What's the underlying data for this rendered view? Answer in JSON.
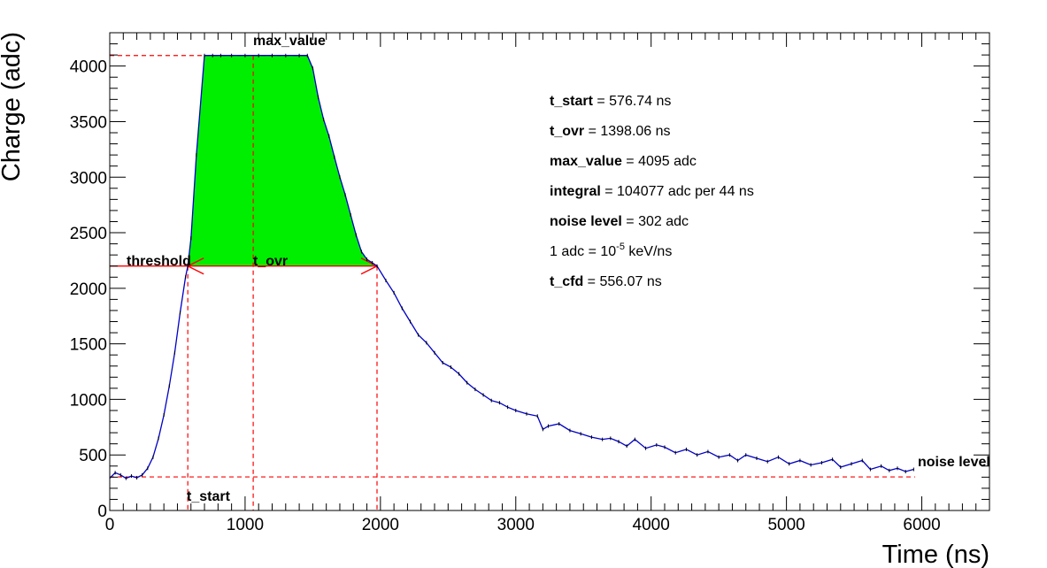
{
  "chart_data": {
    "type": "line",
    "xlabel": "Time (ns)",
    "ylabel": "Charge (adc)",
    "xlim": [
      0,
      6500
    ],
    "ylim": [
      0,
      4300
    ],
    "x_ticks": [
      "0",
      "1000",
      "2000",
      "3000",
      "4000",
      "5000",
      "6000"
    ],
    "y_ticks": [
      "0",
      "500",
      "1000",
      "1500",
      "2000",
      "2500",
      "3000",
      "3500",
      "4000"
    ],
    "colors": {
      "waveform": "#0000c8",
      "fill": "#00ee00",
      "markers": "#ff0000"
    },
    "series": [
      {
        "x": [
          0,
          40,
          80,
          120,
          160,
          200,
          240,
          280,
          320,
          360,
          400,
          440,
          480,
          520,
          560,
          576.74,
          600,
          640,
          700,
          760,
          820,
          900,
          1000,
          1100,
          1200,
          1300,
          1400,
          1460,
          1500,
          1540,
          1580,
          1620,
          1660,
          1700,
          1740,
          1780,
          1820,
          1860,
          1900,
          1940,
          1974.8,
          2040,
          2100,
          2160,
          2220,
          2280,
          2340,
          2400,
          2460,
          2520,
          2580,
          2640,
          2700,
          2760,
          2820,
          2880,
          2940,
          3000,
          3080,
          3160,
          3200,
          3240,
          3320,
          3400,
          3480,
          3560,
          3640,
          3700,
          3760,
          3820,
          3880,
          3960,
          4040,
          4100,
          4180,
          4260,
          4340,
          4420,
          4500,
          4580,
          4640,
          4700,
          4780,
          4860,
          4940,
          5020,
          5100,
          5180,
          5260,
          5340,
          5400,
          5480,
          5560,
          5620,
          5700,
          5760,
          5820,
          5880,
          5940
        ],
        "y": [
          290,
          340,
          320,
          290,
          310,
          295,
          320,
          380,
          480,
          650,
          860,
          1120,
          1420,
          1780,
          2100,
          2200,
          2450,
          3200,
          4095,
          4095,
          4095,
          4095,
          4095,
          4095,
          4095,
          4095,
          4095,
          4095,
          3980,
          3720,
          3520,
          3370,
          3180,
          3000,
          2840,
          2660,
          2480,
          2330,
          2260,
          2230,
          2200,
          2070,
          1960,
          1820,
          1700,
          1580,
          1510,
          1420,
          1330,
          1290,
          1230,
          1150,
          1090,
          1040,
          990,
          970,
          930,
          900,
          870,
          850,
          730,
          760,
          780,
          720,
          690,
          660,
          640,
          650,
          620,
          580,
          640,
          560,
          590,
          570,
          520,
          550,
          500,
          530,
          480,
          500,
          450,
          500,
          470,
          440,
          480,
          420,
          450,
          410,
          430,
          460,
          390,
          420,
          450,
          370,
          400,
          360,
          380,
          350,
          370
        ]
      }
    ],
    "markers": {
      "threshold_y": 2200,
      "noise_level_y": 302,
      "max_value_y": 4095,
      "t_start_x": 576.74,
      "t_ovr_end_x": 1974.8,
      "t_ovr_label_x": 1070,
      "max_line_x": 1060,
      "noise_line_end_x": 5950
    },
    "labels": {
      "max_value": "max_value",
      "threshold": "threshold",
      "t_ovr": "t_ovr",
      "t_start": "t_start",
      "noise_level": "noise level"
    },
    "stats": [
      {
        "key": "t_start",
        "value": " =  576.74 ns"
      },
      {
        "key": "t_ovr",
        "value": " =  1398.06 ns"
      },
      {
        "key": "max_value",
        "value": " =  4095 adc"
      },
      {
        "key": "integral",
        "value": " =  104077 adc per 44 ns"
      },
      {
        "key": "noise level",
        "value": " =  302 adc"
      },
      {
        "key": "",
        "value": "1 adc =  10",
        "sup": "-5",
        "tail": " keV/ns"
      },
      {
        "key": "t_cfd",
        "value": " = 556.07 ns"
      }
    ]
  }
}
